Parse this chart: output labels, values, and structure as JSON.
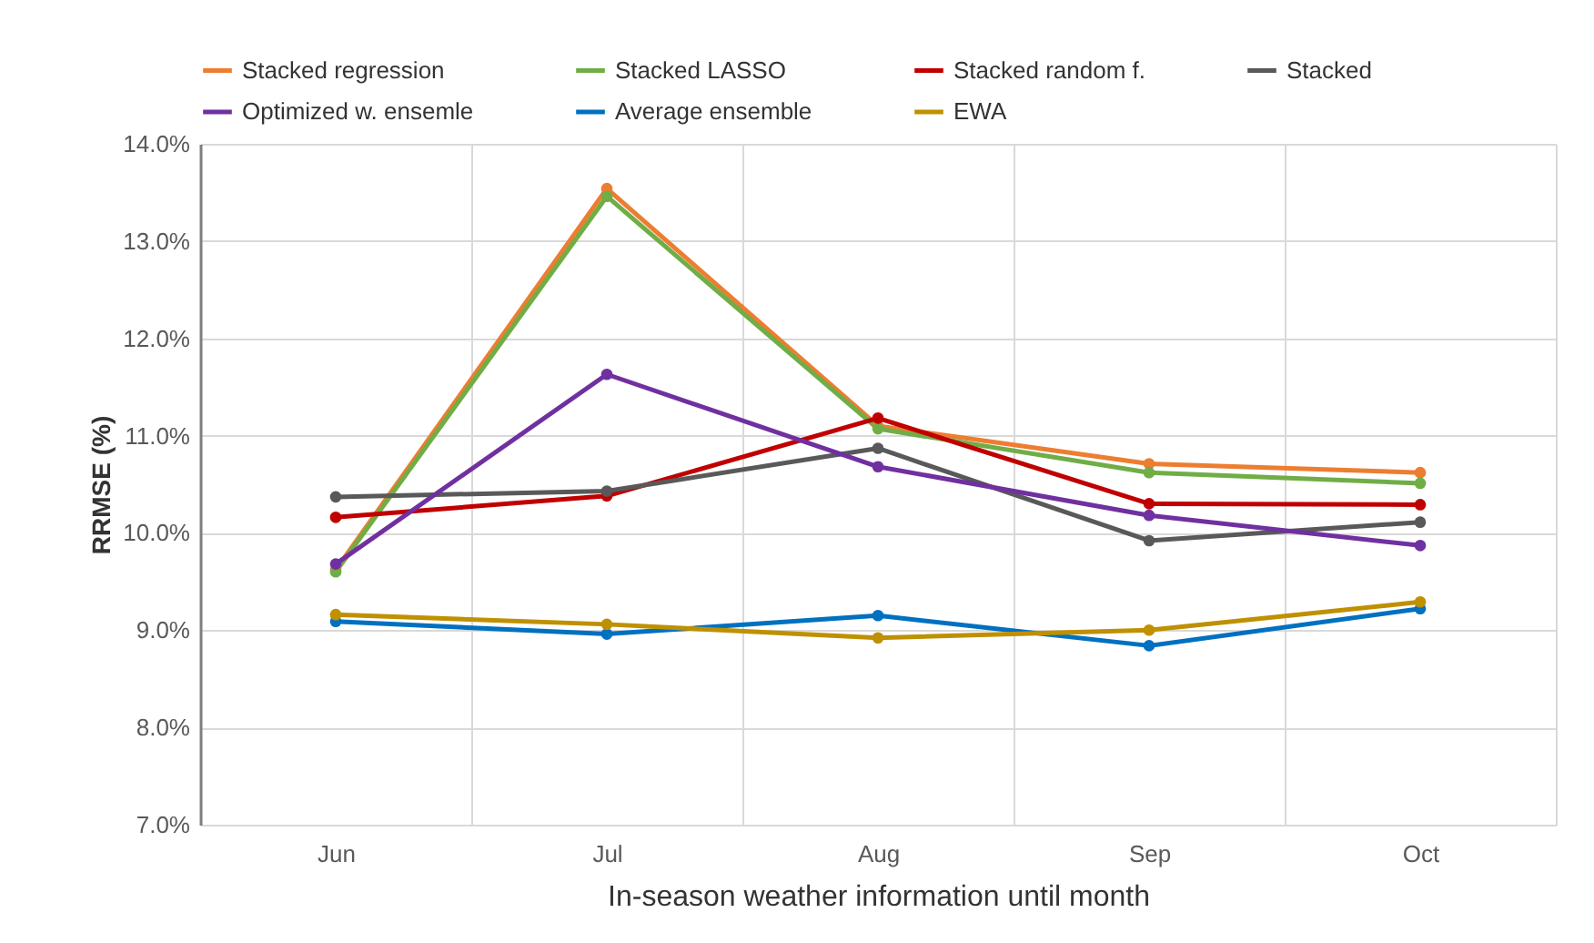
{
  "chart_data": {
    "type": "line",
    "xlabel": "In-season weather information until month",
    "ylabel": "RRMSE (%)",
    "categories": [
      "Jun",
      "Jul",
      "Aug",
      "Sep",
      "Oct"
    ],
    "series": [
      {
        "name": "Stacked regression",
        "color": "#ed7d31",
        "values": [
          9.62,
          13.54,
          11.1,
          10.71,
          10.62
        ]
      },
      {
        "name": "Stacked LASSO",
        "color": "#70ad47",
        "values": [
          9.6,
          13.46,
          11.07,
          10.62,
          10.51
        ]
      },
      {
        "name": "Stacked random f.",
        "color": "#c00000",
        "values": [
          10.16,
          10.38,
          11.18,
          10.3,
          10.29
        ]
      },
      {
        "name": "Stacked",
        "color": "#595959",
        "values": [
          10.37,
          10.43,
          10.87,
          9.92,
          10.11
        ]
      },
      {
        "name": "Optimized w. ensemle",
        "color": "#7030a0",
        "values": [
          9.68,
          11.63,
          10.68,
          10.18,
          9.87
        ]
      },
      {
        "name": "Average ensemble",
        "color": "#0070c0",
        "values": [
          9.09,
          8.96,
          9.15,
          8.84,
          9.22
        ]
      },
      {
        "name": "EWA",
        "color": "#bf9000",
        "values": [
          9.16,
          9.06,
          8.92,
          9.0,
          9.29
        ]
      }
    ],
    "ylim": [
      7,
      14
    ],
    "yticks": [
      {
        "value": 7,
        "label": "7.0%"
      },
      {
        "value": 8,
        "label": "8.0%"
      },
      {
        "value": 9,
        "label": "9.0%"
      },
      {
        "value": 10,
        "label": "10.0%"
      },
      {
        "value": 11,
        "label": "11.0%"
      },
      {
        "value": 12,
        "label": "12.0%"
      },
      {
        "value": 13,
        "label": "13.0%"
      },
      {
        "value": 14,
        "label": "14.0%"
      }
    ],
    "grid": true,
    "legend": "top",
    "marker": "circle",
    "line_style": "solid"
  }
}
